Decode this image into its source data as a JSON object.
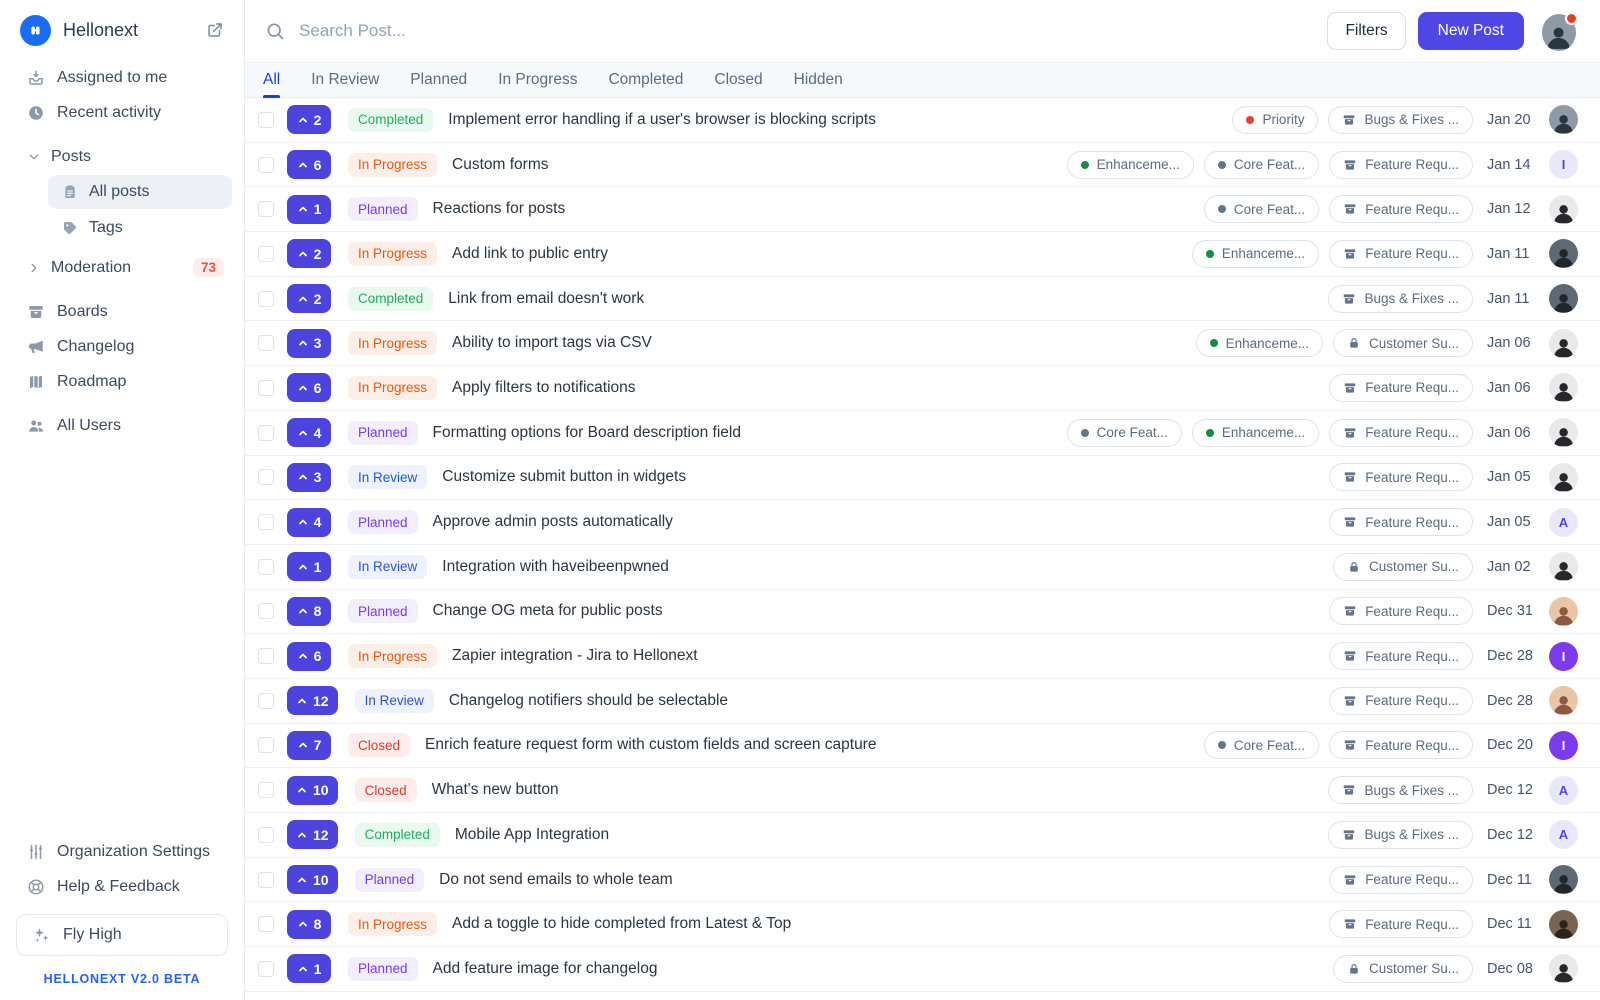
{
  "brand": {
    "name": "Hellonext"
  },
  "sidebar": {
    "items_top": [
      {
        "id": "assigned-to-me",
        "label": "Assigned to me",
        "icon": "inbox-down"
      },
      {
        "id": "recent-activity",
        "label": "Recent activity",
        "icon": "clock"
      }
    ],
    "posts_group": {
      "label": "Posts",
      "children": [
        {
          "id": "all-posts",
          "label": "All posts",
          "icon": "clipboard",
          "active": true
        },
        {
          "id": "tags",
          "label": "Tags",
          "icon": "tag",
          "active": false
        }
      ]
    },
    "moderation": {
      "label": "Moderation",
      "badge": "73"
    },
    "items_mid": [
      {
        "id": "boards",
        "label": "Boards",
        "icon": "archive"
      },
      {
        "id": "changelog",
        "label": "Changelog",
        "icon": "megaphone"
      },
      {
        "id": "roadmap",
        "label": "Roadmap",
        "icon": "map"
      },
      {
        "id": "all-users",
        "label": "All Users",
        "icon": "users",
        "gap": true
      }
    ],
    "items_bottom": [
      {
        "id": "organization-settings",
        "label": "Organization Settings",
        "icon": "sliders"
      },
      {
        "id": "help-feedback",
        "label": "Help & Feedback",
        "icon": "lifebuoy"
      }
    ],
    "upgrade": {
      "label": "Fly High",
      "icon": "sparkles"
    },
    "footer": "HELLONEXT V2.0 BETA"
  },
  "topbar": {
    "search_placeholder": "Search Post...",
    "filters_label": "Filters",
    "new_post_label": "New Post",
    "avatar": {
      "type": "photo",
      "variant": "m1",
      "notification": true
    }
  },
  "tabs": [
    {
      "label": "All",
      "active": true
    },
    {
      "label": "In Review",
      "active": false
    },
    {
      "label": "Planned",
      "active": false
    },
    {
      "label": "In Progress",
      "active": false
    },
    {
      "label": "Completed",
      "active": false
    },
    {
      "label": "Closed",
      "active": false
    },
    {
      "label": "Hidden",
      "active": false
    }
  ],
  "status_styles": {
    "Completed": {
      "color": "#1fae5e",
      "bg": "#e9f9ef"
    },
    "In Progress": {
      "color": "#e3590f",
      "bg": "#fdefe7"
    },
    "Planned": {
      "color": "#7a3bec",
      "bg": "#f3eefd"
    },
    "In Review": {
      "color": "#2855e0",
      "bg": "#edf2fd"
    },
    "Closed": {
      "color": "#dc3b2d",
      "bg": "#fdecea"
    }
  },
  "colors": {
    "primary": "#4f46e5",
    "active_tab": "#1c3fd6",
    "logo_blue": "#186df3",
    "notification_red": "#ef3b22"
  },
  "avatar_variants": {
    "m1": {
      "bg": "#8e9aa6",
      "fg": "#2b3540"
    },
    "m2": {
      "bg": "#e9e9e9",
      "fg": "#26282b"
    },
    "m3": {
      "bg": "#5d6a74",
      "fg": "#20262c"
    },
    "m4": {
      "bg": "#7a6353",
      "fg": "#2e2319"
    },
    "w1": {
      "bg": "#e9c6a6",
      "fg": "#8a5a43"
    },
    "initial_light": {
      "bg": "#e9e8fb",
      "fg": "#4f46e5"
    },
    "initial_solid": {
      "bg": "#7c3aed",
      "fg": "#ffffff"
    }
  },
  "posts": [
    {
      "votes": 2,
      "status": "Completed",
      "title": "Implement error handling if a user's browser is blocking scripts",
      "tags": [
        {
          "label": "Priority",
          "dot": "#e8402a"
        }
      ],
      "board": {
        "label": "Bugs & Fixes ...",
        "icon": "archive"
      },
      "date": "Jan 20",
      "avatar": {
        "type": "photo",
        "variant": "m1"
      }
    },
    {
      "votes": 6,
      "status": "In Progress",
      "title": "Custom forms",
      "tags": [
        {
          "label": "Enhanceme...",
          "dot": "#188a42"
        },
        {
          "label": "Core Feat...",
          "dot": "#64748b"
        }
      ],
      "board": {
        "label": "Feature Requ...",
        "icon": "archive"
      },
      "date": "Jan 14",
      "avatar": {
        "type": "initial",
        "text": "I",
        "style": "light"
      }
    },
    {
      "votes": 1,
      "status": "Planned",
      "title": "Reactions for posts",
      "tags": [
        {
          "label": "Core Feat...",
          "dot": "#64748b"
        }
      ],
      "board": {
        "label": "Feature Requ...",
        "icon": "archive"
      },
      "date": "Jan 12",
      "avatar": {
        "type": "photo",
        "variant": "m2"
      }
    },
    {
      "votes": 2,
      "status": "In Progress",
      "title": "Add link to public entry",
      "tags": [
        {
          "label": "Enhanceme...",
          "dot": "#188a42"
        }
      ],
      "board": {
        "label": "Feature Requ...",
        "icon": "archive"
      },
      "date": "Jan 11",
      "avatar": {
        "type": "photo",
        "variant": "m3"
      }
    },
    {
      "votes": 2,
      "status": "Completed",
      "title": "Link from email doesn't work",
      "tags": [],
      "board": {
        "label": "Bugs & Fixes ...",
        "icon": "archive"
      },
      "date": "Jan 11",
      "avatar": {
        "type": "photo",
        "variant": "m3"
      }
    },
    {
      "votes": 3,
      "status": "In Progress",
      "title": "Ability to import tags via CSV",
      "tags": [
        {
          "label": "Enhanceme...",
          "dot": "#188a42"
        }
      ],
      "board": {
        "label": "Customer Su...",
        "icon": "lock"
      },
      "date": "Jan 06",
      "avatar": {
        "type": "photo",
        "variant": "m2"
      }
    },
    {
      "votes": 6,
      "status": "In Progress",
      "title": "Apply filters to notifications",
      "tags": [],
      "board": {
        "label": "Feature Requ...",
        "icon": "archive"
      },
      "date": "Jan 06",
      "avatar": {
        "type": "photo",
        "variant": "m2"
      }
    },
    {
      "votes": 4,
      "status": "Planned",
      "title": "Formatting options for Board description field",
      "tags": [
        {
          "label": "Core Feat...",
          "dot": "#64748b"
        },
        {
          "label": "Enhanceme...",
          "dot": "#188a42"
        }
      ],
      "board": {
        "label": "Feature Requ...",
        "icon": "archive"
      },
      "date": "Jan 06",
      "avatar": {
        "type": "photo",
        "variant": "m2"
      }
    },
    {
      "votes": 3,
      "status": "In Review",
      "title": "Customize submit button in widgets",
      "tags": [],
      "board": {
        "label": "Feature Requ...",
        "icon": "archive"
      },
      "date": "Jan 05",
      "avatar": {
        "type": "photo",
        "variant": "m2"
      }
    },
    {
      "votes": 4,
      "status": "Planned",
      "title": "Approve admin posts automatically",
      "tags": [],
      "board": {
        "label": "Feature Requ...",
        "icon": "archive"
      },
      "date": "Jan 05",
      "avatar": {
        "type": "initial",
        "text": "A",
        "style": "light"
      }
    },
    {
      "votes": 1,
      "status": "In Review",
      "title": "Integration with haveibeenpwned",
      "tags": [],
      "board": {
        "label": "Customer Su...",
        "icon": "lock"
      },
      "date": "Jan 02",
      "avatar": {
        "type": "photo",
        "variant": "m2"
      }
    },
    {
      "votes": 8,
      "status": "Planned",
      "title": "Change OG meta for public posts",
      "tags": [],
      "board": {
        "label": "Feature Requ...",
        "icon": "archive"
      },
      "date": "Dec 31",
      "avatar": {
        "type": "photo",
        "variant": "w1"
      }
    },
    {
      "votes": 6,
      "status": "In Progress",
      "title": "Zapier integration - Jira to Hellonext",
      "tags": [],
      "board": {
        "label": "Feature Requ...",
        "icon": "archive"
      },
      "date": "Dec 28",
      "avatar": {
        "type": "initial",
        "text": "I",
        "style": "solid"
      }
    },
    {
      "votes": 12,
      "status": "In Review",
      "title": "Changelog notifiers should be selectable",
      "tags": [],
      "board": {
        "label": "Feature Requ...",
        "icon": "archive"
      },
      "date": "Dec 28",
      "avatar": {
        "type": "photo",
        "variant": "w1"
      }
    },
    {
      "votes": 7,
      "status": "Closed",
      "title": "Enrich feature request form with custom fields and screen capture",
      "tags": [
        {
          "label": "Core Feat...",
          "dot": "#64748b"
        }
      ],
      "board": {
        "label": "Feature Requ...",
        "icon": "archive"
      },
      "date": "Dec 20",
      "avatar": {
        "type": "initial",
        "text": "I",
        "style": "solid"
      }
    },
    {
      "votes": 10,
      "status": "Closed",
      "title": "What's new button",
      "tags": [],
      "board": {
        "label": "Bugs & Fixes ...",
        "icon": "archive"
      },
      "date": "Dec 12",
      "avatar": {
        "type": "initial",
        "text": "A",
        "style": "light"
      }
    },
    {
      "votes": 12,
      "status": "Completed",
      "title": "Mobile App Integration",
      "tags": [],
      "board": {
        "label": "Bugs & Fixes ...",
        "icon": "archive"
      },
      "date": "Dec 12",
      "avatar": {
        "type": "initial",
        "text": "A",
        "style": "light"
      }
    },
    {
      "votes": 10,
      "status": "Planned",
      "title": "Do not send emails to whole team",
      "tags": [],
      "board": {
        "label": "Feature Requ...",
        "icon": "archive"
      },
      "date": "Dec 11",
      "avatar": {
        "type": "photo",
        "variant": "m3"
      }
    },
    {
      "votes": 8,
      "status": "In Progress",
      "title": "Add a toggle to hide completed from Latest & Top",
      "tags": [],
      "board": {
        "label": "Feature Requ...",
        "icon": "archive"
      },
      "date": "Dec 11",
      "avatar": {
        "type": "photo",
        "variant": "m4"
      }
    },
    {
      "votes": 1,
      "status": "Planned",
      "title": "Add feature image for changelog",
      "tags": [],
      "board": {
        "label": "Customer Su...",
        "icon": "lock"
      },
      "date": "Dec 08",
      "avatar": {
        "type": "photo",
        "variant": "m2"
      }
    }
  ]
}
